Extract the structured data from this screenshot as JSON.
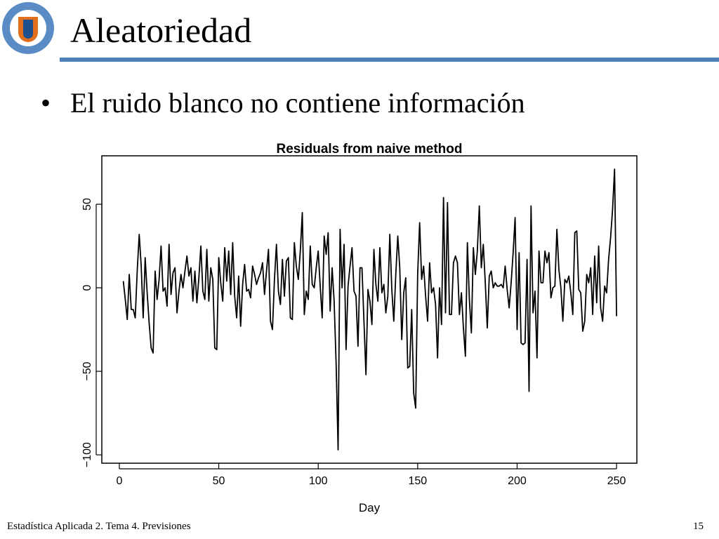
{
  "slide": {
    "title": "Aleatoriedad",
    "bullet": "El ruido blanco no contiene información",
    "footer": "Estadística Aplicada 2. Tema 4. Previsiones",
    "page_number": "15"
  },
  "chart_data": {
    "type": "line",
    "title": "Residuals from naive method",
    "xlabel": "Day",
    "color": "#000000",
    "xlim": [
      -8.8,
      260.2
    ],
    "ylim": [
      -105,
      79
    ],
    "xticks": [
      0,
      50,
      100,
      150,
      200,
      250
    ],
    "yticks": [
      {
        "value": -100,
        "label": "−100"
      },
      {
        "value": -50,
        "label": "−50"
      },
      0,
      50
    ],
    "x": [
      1,
      2,
      3,
      4,
      5,
      6,
      7,
      8,
      9,
      10,
      11,
      12,
      13,
      14,
      15,
      16,
      17,
      18,
      19,
      20,
      21,
      22,
      23,
      24,
      25,
      26,
      27,
      28,
      29,
      30,
      31,
      32,
      33,
      34,
      35,
      36,
      37,
      38,
      39,
      40,
      41,
      42,
      43,
      44,
      45,
      46,
      47,
      48,
      49,
      50,
      51,
      52,
      53,
      54,
      55,
      56,
      57,
      58,
      59,
      60,
      61,
      62,
      63,
      64,
      65,
      66,
      67,
      68,
      69,
      70,
      71,
      72,
      73,
      74,
      75,
      76,
      77,
      78,
      79,
      80,
      81,
      82,
      83,
      84,
      85,
      86,
      87,
      88,
      89,
      90,
      91,
      92,
      93,
      94,
      95,
      96,
      97,
      98,
      99,
      100,
      101,
      102,
      103,
      104,
      105,
      106,
      107,
      108,
      109,
      110,
      111,
      112,
      113,
      114,
      115,
      116,
      117,
      118,
      119,
      120,
      121,
      122,
      123,
      124,
      125,
      126,
      127,
      128,
      129,
      130,
      131,
      132,
      133,
      134,
      135,
      136,
      137,
      138,
      139,
      140,
      141,
      142,
      143,
      144,
      145,
      146,
      147,
      148,
      149,
      150,
      151,
      152,
      153,
      154,
      155,
      156,
      157,
      158,
      159,
      160,
      161,
      162,
      163,
      164,
      165,
      166,
      167,
      168,
      169,
      170,
      171,
      172,
      173,
      174,
      175,
      176,
      177,
      178,
      179,
      180,
      181,
      182,
      183,
      184,
      185,
      186,
      187,
      188,
      189,
      190,
      191,
      192,
      193,
      194,
      195,
      196,
      197,
      198,
      199,
      200,
      201,
      202,
      203,
      204,
      205,
      206,
      207,
      208,
      209,
      210,
      211,
      212,
      213,
      214,
      215,
      216,
      217,
      218,
      219,
      220,
      221,
      222,
      223,
      224,
      225,
      226,
      227,
      228,
      229,
      230,
      231,
      232,
      233,
      234,
      235,
      236,
      237,
      238,
      239,
      240,
      241,
      242,
      243,
      244,
      245,
      246,
      247,
      248,
      249,
      250
    ],
    "values": [
      null,
      4,
      -7,
      -19,
      8,
      -13,
      -13,
      -18,
      10,
      32,
      13,
      -18,
      18,
      -3,
      -21,
      -36,
      -39,
      10,
      -7,
      5,
      25,
      -2,
      0,
      -11,
      26,
      -4,
      9,
      12,
      -15,
      -2,
      8,
      0,
      10,
      19,
      7,
      12,
      -8,
      10,
      -9,
      6,
      25,
      -2,
      -7,
      23,
      -8,
      12,
      5,
      -36,
      -37,
      18,
      3,
      -8,
      24,
      4,
      22,
      -4,
      27,
      -5,
      -18,
      7,
      -23,
      2,
      14,
      -2,
      -1,
      -6,
      13,
      8,
      2,
      6,
      9,
      15,
      -4,
      10,
      23,
      -20,
      -25,
      5,
      26,
      -2,
      -10,
      17,
      -5,
      16,
      18,
      -18,
      -19,
      27,
      13,
      5,
      22,
      45,
      -16,
      -2,
      -7,
      25,
      2,
      0,
      12,
      22,
      1,
      -18,
      31,
      20,
      33,
      -14,
      12,
      -8,
      -45,
      -97,
      35,
      0,
      26,
      -37,
      1,
      13,
      24,
      -2,
      -5,
      -35,
      12,
      12,
      -20,
      -52,
      -1,
      -8,
      -22,
      23,
      2,
      -8,
      24,
      -3,
      2,
      -15,
      -5,
      32,
      -1,
      -20,
      8,
      31,
      12,
      -31,
      -3,
      6,
      -48,
      -47,
      -13,
      -63,
      -72,
      8,
      39,
      5,
      13,
      -5,
      -20,
      15,
      -3,
      0,
      -10,
      -42,
      0,
      -22,
      54,
      -15,
      51,
      -16,
      -16,
      15,
      19,
      15,
      -16,
      -3,
      -24,
      -41,
      27,
      -7,
      -27,
      24,
      8,
      22,
      49,
      12,
      26,
      3,
      -24,
      7,
      10,
      0,
      3,
      1,
      1,
      2,
      0,
      13,
      -1,
      -12,
      3,
      21,
      42,
      -25,
      21,
      -33,
      -34,
      -33,
      17,
      -62,
      49,
      -15,
      -2,
      -42,
      22,
      3,
      3,
      22,
      15,
      21,
      -6,
      0,
      1,
      35,
      11,
      0,
      -20,
      5,
      3,
      7,
      -3,
      -16,
      33,
      34,
      -1,
      -3,
      -26,
      -20,
      8,
      3,
      12,
      -16,
      19,
      -9,
      25,
      -12,
      -20,
      1,
      -3,
      17,
      30,
      47,
      71,
      -17
    ]
  }
}
